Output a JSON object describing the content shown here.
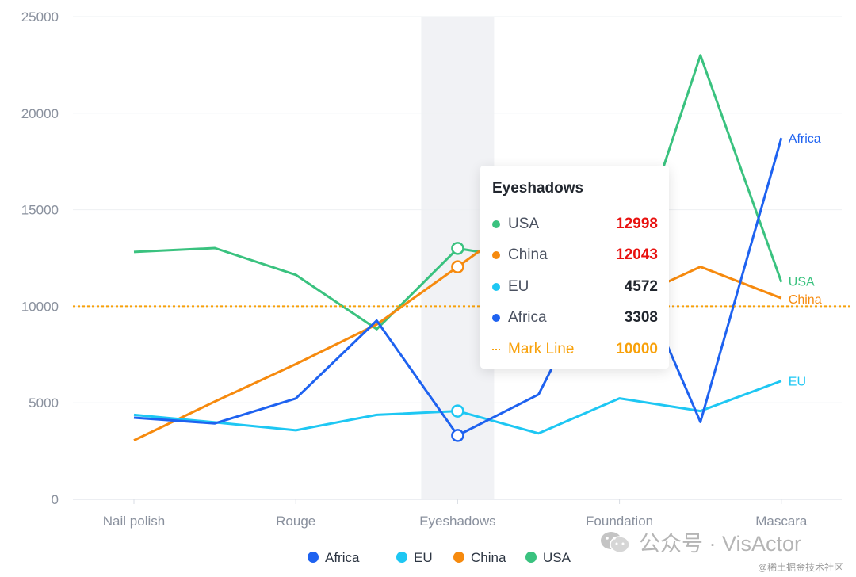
{
  "chart_data": {
    "type": "line",
    "categories": [
      "Nail polish",
      "",
      "Rouge",
      "",
      "Eyeshadows",
      "",
      "Foundation",
      "",
      "Mascara"
    ],
    "series": [
      {
        "name": "Africa",
        "color": "#1e62f0",
        "values": [
          4229,
          3932,
          5221,
          9256,
          3308,
          5432,
          13701,
          4008,
          18712
        ]
      },
      {
        "name": "EU",
        "color": "#1ec7f3",
        "values": [
          4376,
          3987,
          3574,
          4376,
          4572,
          3417,
          5231,
          4572,
          6134
        ]
      },
      {
        "name": "China",
        "color": "#f68a0e",
        "values": [
          3054,
          5067,
          7004,
          9054,
          12043,
          15067,
          10119,
          12043,
          10419
        ]
      },
      {
        "name": "USA",
        "color": "#3ac27f",
        "values": [
          12814,
          13012,
          11624,
          8814,
          12998,
          12321,
          10342,
          22998,
          11261
        ]
      }
    ],
    "ylim": [
      0,
      25000
    ],
    "yticks": [
      "0",
      "5000",
      "10000",
      "15000",
      "20000",
      "25000"
    ],
    "mark_line": {
      "name": "Mark Line",
      "value": 10000,
      "color": "#f8a10a"
    },
    "highlight_index": 4,
    "grid": true,
    "legend_placement": "bottom",
    "end_labels": true
  },
  "tooltip": {
    "title": "Eyeshadows",
    "rows": [
      {
        "name": "USA",
        "value": "12998",
        "color": "#3ac27f",
        "value_color": "#e8110f"
      },
      {
        "name": "China",
        "value": "12043",
        "color": "#f68a0e",
        "value_color": "#e8110f"
      },
      {
        "name": "EU",
        "value": "4572",
        "color": "#1ec7f3",
        "value_color": "#21262e"
      },
      {
        "name": "Africa",
        "value": "3308",
        "color": "#1e62f0",
        "value_color": "#21262e"
      }
    ],
    "mark_row": {
      "name": "Mark Line",
      "value": "10000",
      "color": "#f8a10a"
    }
  },
  "watermark": {
    "text": "公众号 · VisActor",
    "site": "@稀土掘金技术社区",
    "icon": "wechat-icon"
  }
}
